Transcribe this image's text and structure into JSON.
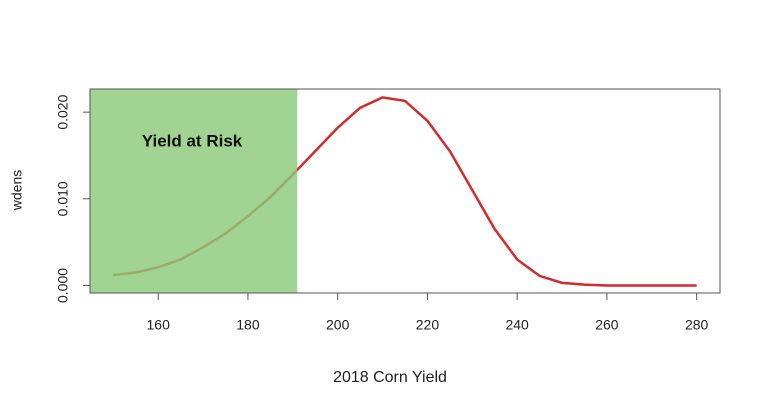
{
  "chart_data": {
    "type": "line",
    "xlabel": "2018 Corn Yield",
    "ylabel": "wdens",
    "annotation": "Yield at Risk",
    "x": [
      150,
      155,
      160,
      165,
      170,
      175,
      180,
      185,
      190,
      195,
      200,
      205,
      210,
      215,
      220,
      225,
      230,
      235,
      240,
      245,
      250,
      255,
      260,
      265,
      270,
      275,
      280
    ],
    "series": [
      {
        "color": "#d42a2a",
        "values": [
          0.0012,
          0.0015,
          0.0021,
          0.003,
          0.0044,
          0.006,
          0.008,
          0.0102,
          0.0128,
          0.0155,
          0.0182,
          0.0205,
          0.0217,
          0.0213,
          0.019,
          0.0155,
          0.011,
          0.0065,
          0.003,
          0.0011,
          0.0003,
          0.0001,
          0,
          0,
          0,
          0,
          0
        ]
      }
    ],
    "shaded_region": {
      "x": [
        144.8,
        191
      ],
      "color": "#8cc97a"
    },
    "xlim": [
      144.8,
      285.2
    ],
    "ylim": [
      -0.00087,
      0.02267
    ],
    "xticks": [
      160,
      180,
      200,
      220,
      240,
      260,
      280
    ],
    "yticks": [
      {
        "value": 0,
        "label": "0.000"
      },
      {
        "value": 0.01,
        "label": "0.010"
      },
      {
        "value": 0.02,
        "label": "0.020"
      }
    ]
  }
}
